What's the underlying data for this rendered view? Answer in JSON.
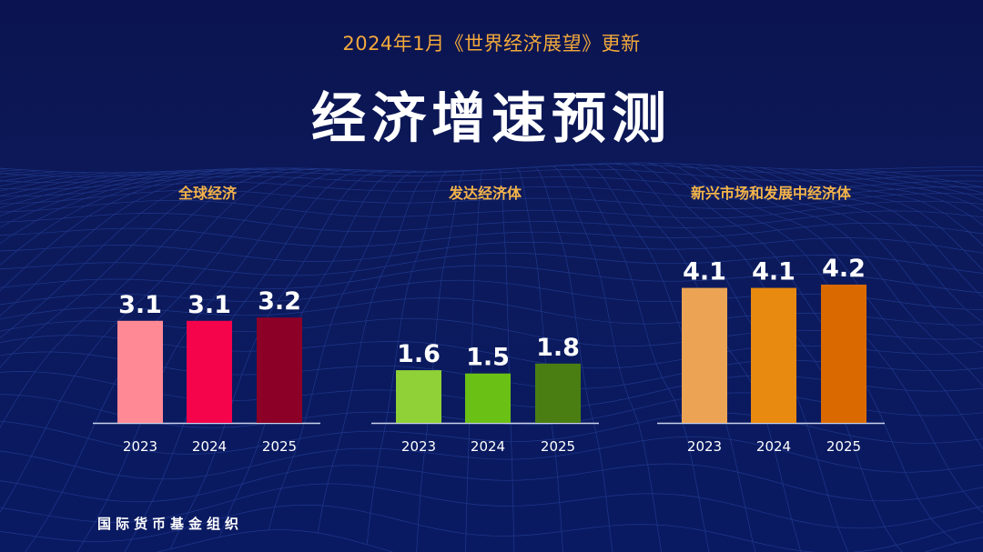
{
  "subtitle": "2024年1月《世界经济展望》更新",
  "title": "经济增速预测",
  "footer": "国际货币基金组织",
  "chart_data": [
    {
      "type": "bar",
      "title": "全球经济",
      "categories": [
        "2023",
        "2024",
        "2025"
      ],
      "values": [
        3.1,
        3.1,
        3.2
      ],
      "colors": [
        "#ff8a96",
        "#f5034b",
        "#8c0027"
      ]
    },
    {
      "type": "bar",
      "title": "发达经济体",
      "categories": [
        "2023",
        "2024",
        "2025"
      ],
      "values": [
        1.6,
        1.5,
        1.8
      ],
      "colors": [
        "#8fd137",
        "#6ac015",
        "#4a7e13"
      ]
    },
    {
      "type": "bar",
      "title": "新兴市场和发展中经济体",
      "categories": [
        "2023",
        "2024",
        "2025"
      ],
      "values": [
        4.1,
        4.1,
        4.2
      ],
      "colors": [
        "#eca454",
        "#e88a10",
        "#da6a00"
      ]
    }
  ]
}
